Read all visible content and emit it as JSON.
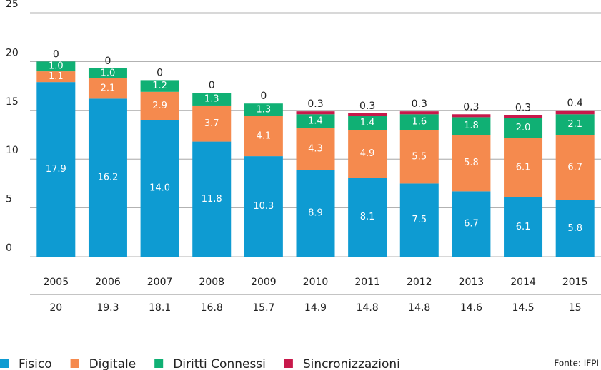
{
  "chart_data": {
    "type": "stacked_bar",
    "categories": [
      "2005",
      "2006",
      "2007",
      "2008",
      "2009",
      "2010",
      "2011",
      "2012",
      "2013",
      "2014",
      "2015"
    ],
    "series": [
      {
        "name": "Fisico",
        "color": "#0e9bd2",
        "values": [
          17.9,
          16.2,
          14.0,
          11.8,
          10.3,
          8.9,
          8.1,
          7.5,
          6.7,
          6.1,
          5.8
        ],
        "value_labels": [
          "17.9",
          "16.2",
          "14.0",
          "11.8",
          "10.3",
          "8.9",
          "8.1",
          "7.5",
          "6.7",
          "6.1",
          "5.8"
        ]
      },
      {
        "name": "Digitale",
        "color": "#f58a4e",
        "values": [
          1.1,
          2.1,
          2.9,
          3.7,
          4.1,
          4.3,
          4.9,
          5.5,
          5.8,
          6.1,
          6.7
        ],
        "value_labels": [
          "1.1",
          "2.1",
          "2.9",
          "3.7",
          "4.1",
          "4.3",
          "4.9",
          "5.5",
          "5.8",
          "6.1",
          "6.7"
        ]
      },
      {
        "name": "Diritti Connessi",
        "color": "#10b074",
        "values": [
          1.0,
          1.0,
          1.2,
          1.3,
          1.3,
          1.4,
          1.4,
          1.6,
          1.8,
          2.0,
          2.1
        ],
        "value_labels": [
          "1.0",
          "1.0",
          "1.2",
          "1.3",
          "1.3",
          "1.4",
          "1.4",
          "1.6",
          "1.8",
          "2.0",
          "2.1"
        ]
      },
      {
        "name": "Sincronizzazioni",
        "color": "#c8194b",
        "values": [
          0,
          0,
          0,
          0,
          0,
          0.3,
          0.3,
          0.3,
          0.3,
          0.3,
          0.4
        ],
        "value_labels": [
          "0",
          "0",
          "0",
          "0",
          "0",
          "0.3",
          "0.3",
          "0.3",
          "0.3",
          "0.3",
          "0.4"
        ]
      }
    ],
    "totals": [
      20.0,
      19.3,
      18.1,
      16.8,
      15.7,
      14.9,
      14.8,
      14.8,
      14.6,
      14.5,
      15.0
    ],
    "total_labels": [
      "20.0",
      "19.3",
      "18.1",
      "16.8",
      "15.7",
      "14.9",
      "14.8",
      "14.8",
      "14.6",
      "14.5",
      "15.0"
    ],
    "ylim": [
      0,
      25
    ],
    "yticks": [
      0,
      5,
      10,
      15,
      20,
      25
    ],
    "grid": true,
    "source": "Fonte: IFPI"
  }
}
